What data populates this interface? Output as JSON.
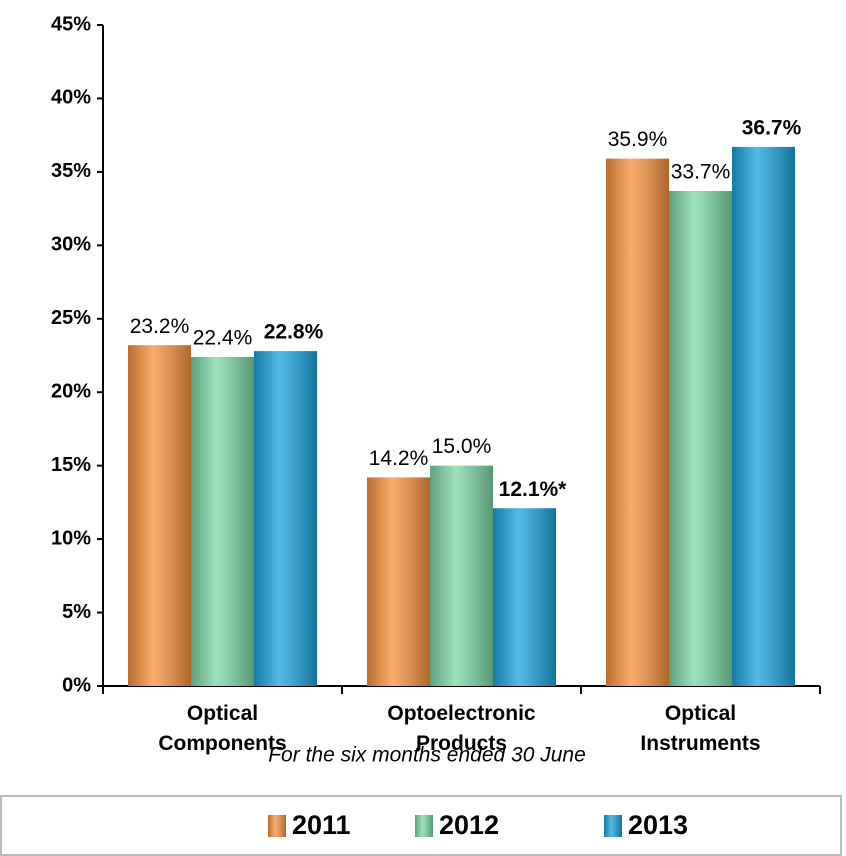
{
  "chart_data": {
    "type": "bar",
    "x_label": "For the six months ended 30 June",
    "categories": [
      "Optical Components",
      "Optoelectronic Products",
      "Optical Instruments"
    ],
    "series": [
      {
        "name": "2011",
        "color": "#f7923e",
        "values": [
          23.2,
          14.2,
          35.9
        ],
        "value_labels": [
          "23.2%",
          "14.2%",
          "35.9%"
        ]
      },
      {
        "name": "2012",
        "color": "#7dd8a6",
        "values": [
          22.4,
          15.0,
          33.7
        ],
        "value_labels": [
          "22.4%",
          "15.0%",
          "33.7%"
        ]
      },
      {
        "name": "2013",
        "color": "#1aa3dc",
        "values": [
          22.8,
          12.1,
          36.7
        ],
        "value_labels": [
          "22.8%",
          "12.1%*",
          "36.7%"
        ]
      }
    ],
    "ylim": [
      0,
      45
    ],
    "yticks": [
      {
        "value": 0,
        "label": "0%"
      },
      {
        "value": 5,
        "label": "5%"
      },
      {
        "value": 10,
        "label": "10%"
      },
      {
        "value": 15,
        "label": "15%"
      },
      {
        "value": 20,
        "label": "20%"
      },
      {
        "value": 25,
        "label": "25%"
      },
      {
        "value": 30,
        "label": "30%"
      },
      {
        "value": 35,
        "label": "35%"
      },
      {
        "value": 40,
        "label": "40%"
      },
      {
        "value": 45,
        "label": "45%"
      }
    ],
    "grid": false,
    "legend": "bottom"
  }
}
